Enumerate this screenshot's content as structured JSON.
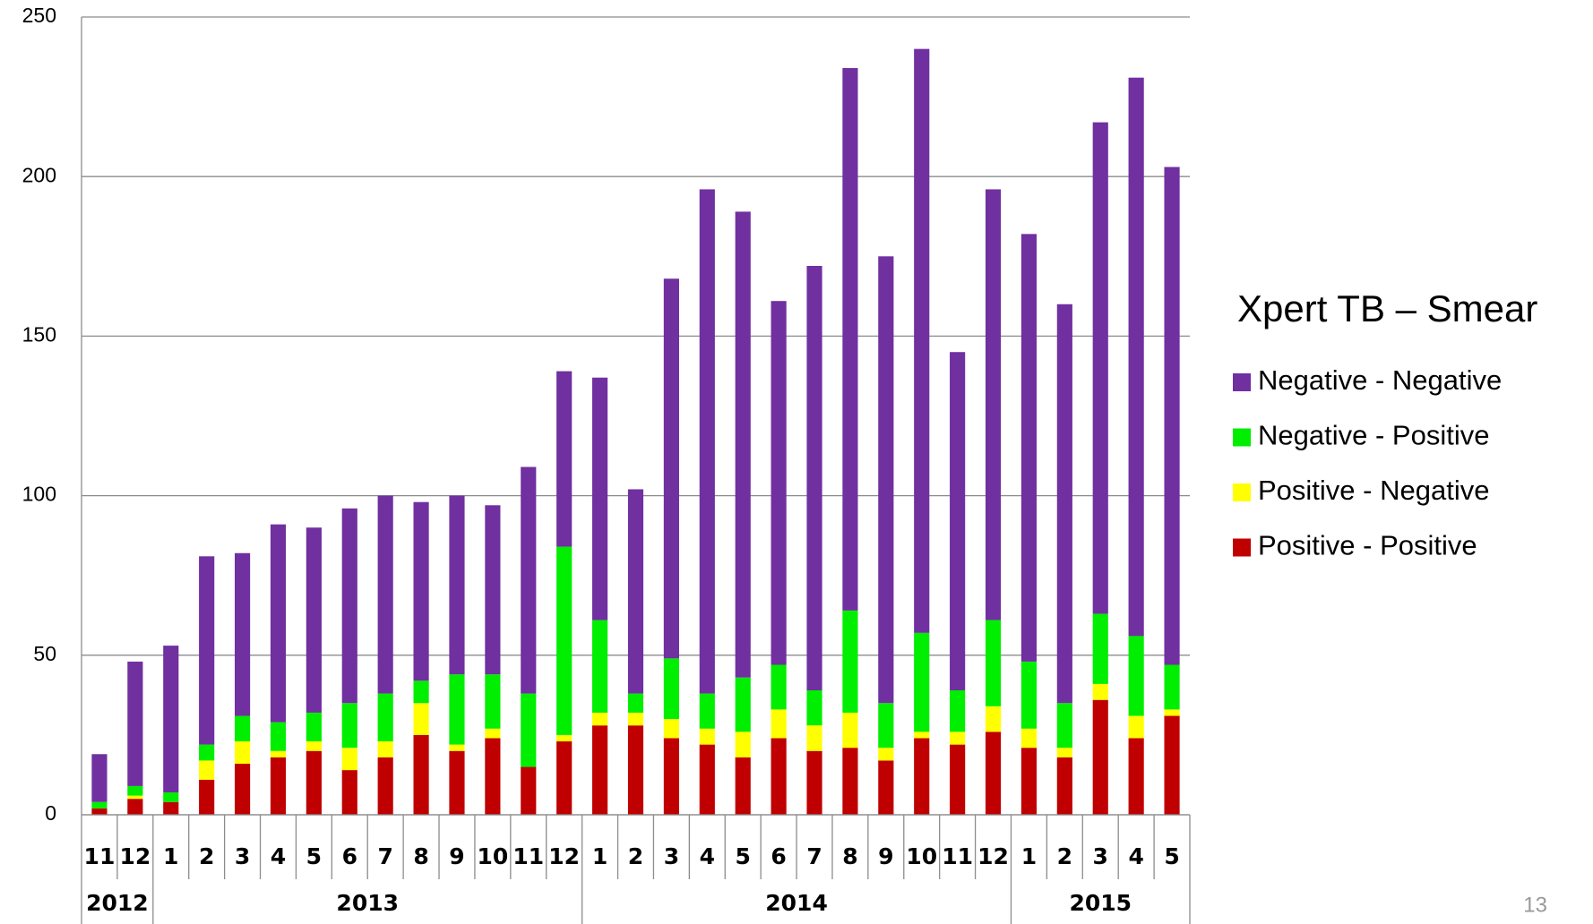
{
  "chart_data": {
    "type": "stacked_bar",
    "legend_title": "Xpert TB – Smear",
    "page_number": "13",
    "year_groups": [
      {
        "year": "2012",
        "months": [
          "11",
          "12"
        ]
      },
      {
        "year": "2013",
        "months": [
          "1",
          "2",
          "3",
          "4",
          "5",
          "6",
          "7",
          "8",
          "9",
          "10",
          "11",
          "12"
        ]
      },
      {
        "year": "2014",
        "months": [
          "1",
          "2",
          "3",
          "4",
          "5",
          "6",
          "7",
          "8",
          "9",
          "10",
          "11",
          "12"
        ]
      },
      {
        "year": "2015",
        "months": [
          "1",
          "2",
          "3",
          "4",
          "5"
        ]
      }
    ],
    "series": [
      {
        "name": "Positive - Positive",
        "color": "#c00000",
        "values": [
          2,
          5,
          4,
          11,
          16,
          18,
          20,
          14,
          18,
          25,
          20,
          24,
          15,
          23,
          28,
          28,
          24,
          22,
          18,
          24,
          20,
          21,
          17,
          24,
          22,
          26,
          21,
          18,
          36,
          24,
          31
        ]
      },
      {
        "name": "Positive - Negative",
        "color": "#ffff00",
        "values": [
          0,
          1,
          0,
          6,
          7,
          2,
          3,
          7,
          5,
          10,
          2,
          3,
          0,
          2,
          4,
          4,
          6,
          5,
          8,
          9,
          8,
          11,
          4,
          2,
          4,
          8,
          6,
          3,
          5,
          7,
          2
        ]
      },
      {
        "name": "Negative - Positive",
        "color": "#00ee00",
        "values": [
          2,
          3,
          3,
          5,
          8,
          9,
          9,
          14,
          15,
          7,
          22,
          17,
          23,
          59,
          29,
          6,
          19,
          11,
          17,
          14,
          11,
          32,
          14,
          31,
          13,
          27,
          21,
          14,
          22,
          25,
          14
        ]
      },
      {
        "name": "Negative - Negative",
        "color": "#7030a0",
        "values": [
          15,
          39,
          46,
          59,
          51,
          62,
          58,
          61,
          62,
          56,
          56,
          53,
          71,
          55,
          76,
          64,
          119,
          158,
          146,
          114,
          133,
          170,
          140,
          183,
          106,
          135,
          134,
          125,
          154,
          175,
          156
        ]
      }
    ],
    "ylim": [
      0,
      250
    ],
    "yticks": [
      0,
      50,
      100,
      150,
      200,
      250
    ],
    "grid": true
  }
}
